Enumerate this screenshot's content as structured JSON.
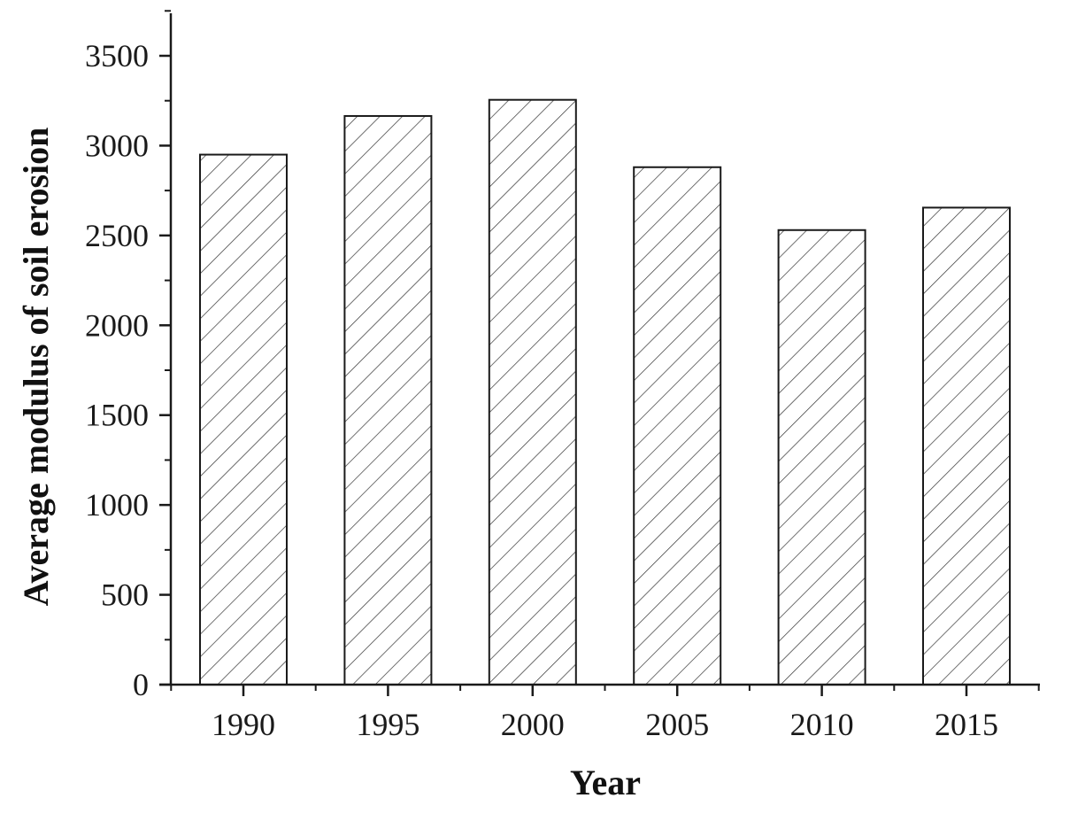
{
  "chart_data": {
    "type": "bar",
    "categories": [
      "1990",
      "1995",
      "2000",
      "2005",
      "2010",
      "2015"
    ],
    "values": [
      2950,
      3165,
      3255,
      2880,
      2530,
      2655
    ],
    "xlabel": "Year",
    "ylabel": "Average modulus of soil erosion",
    "ylim": [
      0,
      3750
    ],
    "yticks": [
      0,
      500,
      1000,
      1500,
      2000,
      2500,
      3000,
      3500
    ],
    "grid": false,
    "legend": "none",
    "bar_fill": "hatched diagonal lines",
    "colors": {
      "bar_stroke": "#1a1a1a",
      "hatch": "#333333",
      "axis": "#1a1a1a",
      "background": "#ffffff"
    }
  }
}
